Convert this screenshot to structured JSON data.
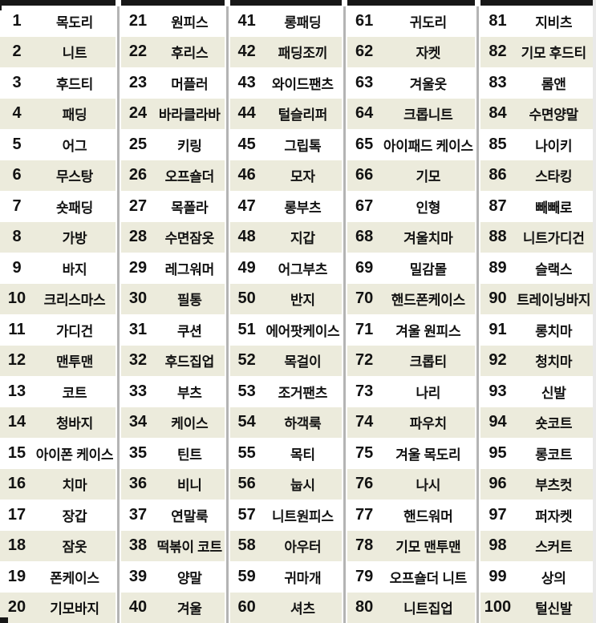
{
  "colors": {
    "row_white": "#ffffff",
    "row_beige": "#ecebdc",
    "divider_gray": "#b4b4b4",
    "top_bar_black": "#171717",
    "text": "#121212"
  },
  "columns": [
    {
      "items": [
        {
          "rank": "1",
          "keyword": "목도리"
        },
        {
          "rank": "2",
          "keyword": "니트"
        },
        {
          "rank": "3",
          "keyword": "후드티"
        },
        {
          "rank": "4",
          "keyword": "패딩"
        },
        {
          "rank": "5",
          "keyword": "어그"
        },
        {
          "rank": "6",
          "keyword": "무스탕"
        },
        {
          "rank": "7",
          "keyword": "숏패딩"
        },
        {
          "rank": "8",
          "keyword": "가방"
        },
        {
          "rank": "9",
          "keyword": "바지"
        },
        {
          "rank": "10",
          "keyword": "크리스마스"
        },
        {
          "rank": "11",
          "keyword": "가디건"
        },
        {
          "rank": "12",
          "keyword": "맨투맨"
        },
        {
          "rank": "13",
          "keyword": "코트"
        },
        {
          "rank": "14",
          "keyword": "청바지"
        },
        {
          "rank": "15",
          "keyword": "아이폰 케이스"
        },
        {
          "rank": "16",
          "keyword": "치마"
        },
        {
          "rank": "17",
          "keyword": "장갑"
        },
        {
          "rank": "18",
          "keyword": "잠옷"
        },
        {
          "rank": "19",
          "keyword": "폰케이스"
        },
        {
          "rank": "20",
          "keyword": "기모바지"
        }
      ]
    },
    {
      "items": [
        {
          "rank": "21",
          "keyword": "원피스"
        },
        {
          "rank": "22",
          "keyword": "후리스"
        },
        {
          "rank": "23",
          "keyword": "머플러"
        },
        {
          "rank": "24",
          "keyword": "바라클라바"
        },
        {
          "rank": "25",
          "keyword": "키링"
        },
        {
          "rank": "26",
          "keyword": "오프숄더"
        },
        {
          "rank": "27",
          "keyword": "목폴라"
        },
        {
          "rank": "28",
          "keyword": "수면잠옷"
        },
        {
          "rank": "29",
          "keyword": "레그워머"
        },
        {
          "rank": "30",
          "keyword": "필통"
        },
        {
          "rank": "31",
          "keyword": "쿠션"
        },
        {
          "rank": "32",
          "keyword": "후드집업"
        },
        {
          "rank": "33",
          "keyword": "부츠"
        },
        {
          "rank": "34",
          "keyword": "케이스"
        },
        {
          "rank": "35",
          "keyword": "틴트"
        },
        {
          "rank": "36",
          "keyword": "비니"
        },
        {
          "rank": "37",
          "keyword": "연말룩"
        },
        {
          "rank": "38",
          "keyword": "떡볶이 코트"
        },
        {
          "rank": "39",
          "keyword": "양말"
        },
        {
          "rank": "40",
          "keyword": "겨울"
        }
      ]
    },
    {
      "items": [
        {
          "rank": "41",
          "keyword": "롱패딩"
        },
        {
          "rank": "42",
          "keyword": "패딩조끼"
        },
        {
          "rank": "43",
          "keyword": "와이드팬츠"
        },
        {
          "rank": "44",
          "keyword": "털슬리퍼"
        },
        {
          "rank": "45",
          "keyword": "그립톡"
        },
        {
          "rank": "46",
          "keyword": "모자"
        },
        {
          "rank": "47",
          "keyword": "롱부츠"
        },
        {
          "rank": "48",
          "keyword": "지갑"
        },
        {
          "rank": "49",
          "keyword": "어그부츠"
        },
        {
          "rank": "50",
          "keyword": "반지"
        },
        {
          "rank": "51",
          "keyword": "에어팟케이스"
        },
        {
          "rank": "52",
          "keyword": "목걸이"
        },
        {
          "rank": "53",
          "keyword": "조거팬츠"
        },
        {
          "rank": "54",
          "keyword": "하객룩"
        },
        {
          "rank": "55",
          "keyword": "목티"
        },
        {
          "rank": "56",
          "keyword": "눕시"
        },
        {
          "rank": "57",
          "keyword": "니트원피스"
        },
        {
          "rank": "58",
          "keyword": "아우터"
        },
        {
          "rank": "59",
          "keyword": "귀마개"
        },
        {
          "rank": "60",
          "keyword": "셔츠"
        }
      ]
    },
    {
      "items": [
        {
          "rank": "61",
          "keyword": "귀도리"
        },
        {
          "rank": "62",
          "keyword": "자켓"
        },
        {
          "rank": "63",
          "keyword": "겨울옷"
        },
        {
          "rank": "64",
          "keyword": "크롭니트"
        },
        {
          "rank": "65",
          "keyword": "아이패드 케이스"
        },
        {
          "rank": "66",
          "keyword": "기모"
        },
        {
          "rank": "67",
          "keyword": "인형"
        },
        {
          "rank": "68",
          "keyword": "겨울치마"
        },
        {
          "rank": "69",
          "keyword": "밀감몰"
        },
        {
          "rank": "70",
          "keyword": "핸드폰케이스"
        },
        {
          "rank": "71",
          "keyword": "겨울 원피스"
        },
        {
          "rank": "72",
          "keyword": "크롭티"
        },
        {
          "rank": "73",
          "keyword": "나리"
        },
        {
          "rank": "74",
          "keyword": "파우치"
        },
        {
          "rank": "75",
          "keyword": "겨울 목도리"
        },
        {
          "rank": "76",
          "keyword": "나시"
        },
        {
          "rank": "77",
          "keyword": "핸드워머"
        },
        {
          "rank": "78",
          "keyword": "기모 맨투맨"
        },
        {
          "rank": "79",
          "keyword": "오프숄더 니트"
        },
        {
          "rank": "80",
          "keyword": "니트집업"
        }
      ]
    },
    {
      "items": [
        {
          "rank": "81",
          "keyword": "지비츠"
        },
        {
          "rank": "82",
          "keyword": "기모 후드티"
        },
        {
          "rank": "83",
          "keyword": "롬앤"
        },
        {
          "rank": "84",
          "keyword": "수면양말"
        },
        {
          "rank": "85",
          "keyword": "나이키"
        },
        {
          "rank": "86",
          "keyword": "스타킹"
        },
        {
          "rank": "87",
          "keyword": "빼빼로"
        },
        {
          "rank": "88",
          "keyword": "니트가디건"
        },
        {
          "rank": "89",
          "keyword": "슬랙스"
        },
        {
          "rank": "90",
          "keyword": "트레이닝바지"
        },
        {
          "rank": "91",
          "keyword": "롱치마"
        },
        {
          "rank": "92",
          "keyword": "청치마"
        },
        {
          "rank": "93",
          "keyword": "신발"
        },
        {
          "rank": "94",
          "keyword": "숏코트"
        },
        {
          "rank": "95",
          "keyword": "롱코트"
        },
        {
          "rank": "96",
          "keyword": "부츠컷"
        },
        {
          "rank": "97",
          "keyword": "퍼자켓"
        },
        {
          "rank": "98",
          "keyword": "스커트"
        },
        {
          "rank": "99",
          "keyword": "상의"
        },
        {
          "rank": "100",
          "keyword": "털신발"
        }
      ]
    }
  ]
}
